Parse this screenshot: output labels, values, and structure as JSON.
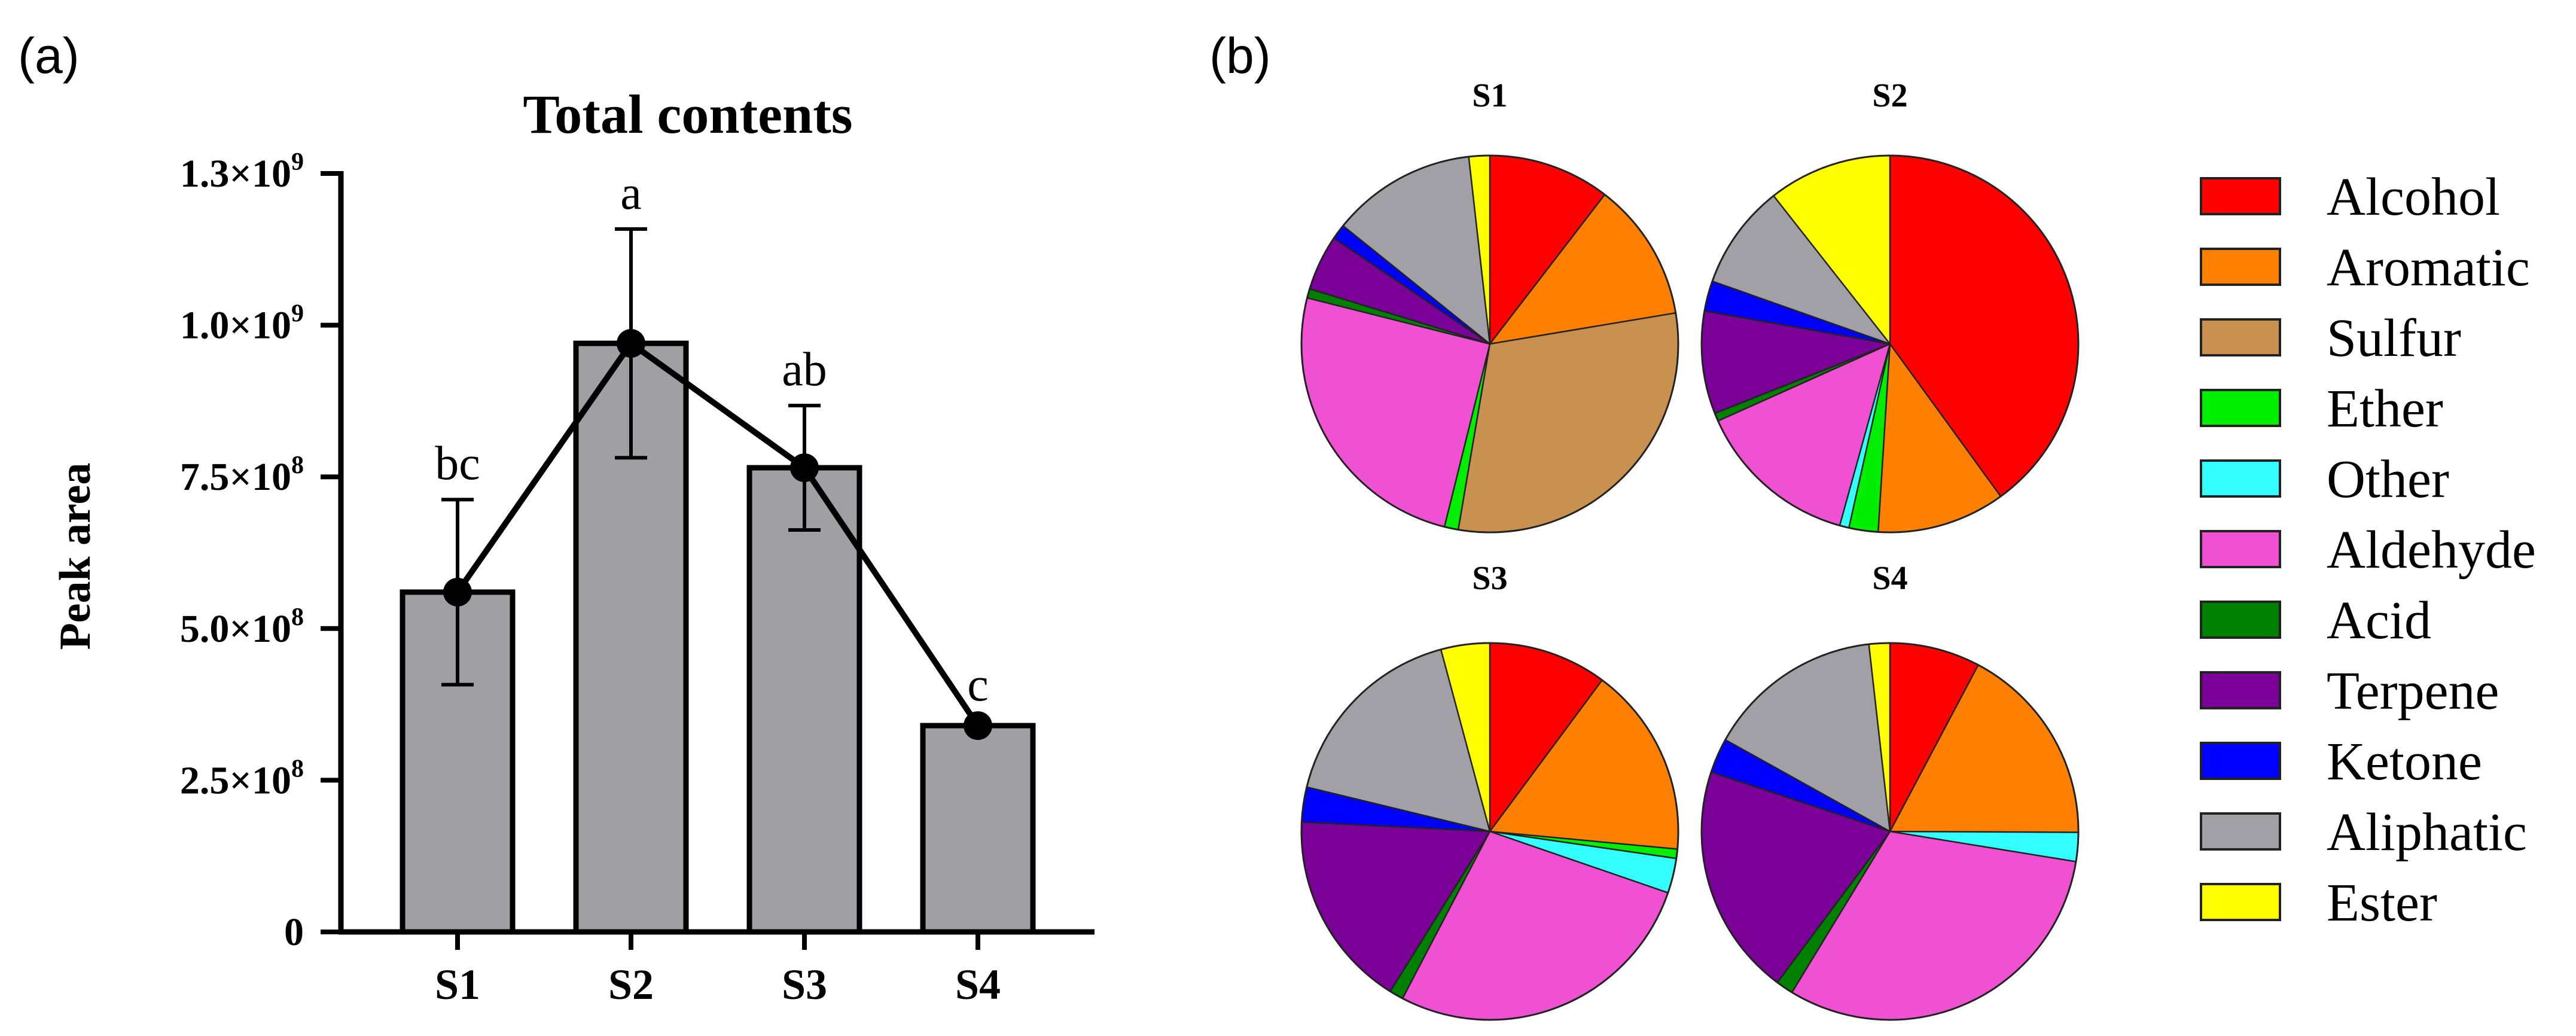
{
  "panel_a_label": "(a)",
  "panel_b_label": "(b)",
  "chart_data": [
    {
      "type": "bar",
      "title": "Total contents",
      "xlabel": "",
      "ylabel": "Peak area",
      "categories": [
        "S1",
        "S2",
        "S3",
        "S4"
      ],
      "values": [
        560000000,
        970000000,
        765000000,
        340000000
      ],
      "errors": [
        305000000,
        377000000,
        205000000,
        0
      ],
      "significance": [
        "bc",
        "a",
        "ab",
        "c"
      ],
      "overlay_line": true,
      "ylim": [
        0,
        1250000000
      ],
      "yticks": [
        {
          "value": 0,
          "mantissa": "0",
          "exp": ""
        },
        {
          "value": 250000000,
          "mantissa": "2.5×10",
          "exp": "8"
        },
        {
          "value": 500000000,
          "mantissa": "5.0×10",
          "exp": "8"
        },
        {
          "value": 750000000,
          "mantissa": "7.5×10",
          "exp": "8"
        },
        {
          "value": 1000000000,
          "mantissa": "1.0×10",
          "exp": "9"
        },
        {
          "value": 1250000000,
          "mantissa": "1.3×10",
          "exp": "9"
        }
      ],
      "bar_color": "#a09fa4",
      "line_color": "#000000"
    },
    {
      "type": "pie",
      "legend_position": "right",
      "legend": [
        {
          "name": "Alcohol",
          "color": "#ff0000"
        },
        {
          "name": "Aromatic",
          "color": "#ff8000"
        },
        {
          "name": "Sulfur",
          "color": "#c8914f"
        },
        {
          "name": "Ether",
          "color": "#00ee00"
        },
        {
          "name": "Other",
          "color": "#33ffff"
        },
        {
          "name": "Aldehyde",
          "color": "#f050d2"
        },
        {
          "name": "Acid",
          "color": "#008000"
        },
        {
          "name": "Terpene",
          "color": "#7a0097"
        },
        {
          "name": "Ketone",
          "color": "#0000ff"
        },
        {
          "name": "Aliphatic",
          "color": "#a0a0a6"
        },
        {
          "name": "Ester",
          "color": "#ffff00"
        }
      ],
      "pies": [
        {
          "title": "S1",
          "values": [
            10.5,
            12.0,
            30.5,
            1.2,
            0,
            25.2,
            0.8,
            4.8,
            1.3,
            12.5,
            1.8
          ]
        },
        {
          "title": "S2",
          "values": [
            40.0,
            11.0,
            0,
            2.5,
            0.8,
            14.0,
            0.7,
            8.8,
            2.6,
            9.0,
            10.6
          ]
        },
        {
          "title": "S3",
          "values": [
            10.2,
            16.4,
            0,
            0.8,
            3.0,
            27.5,
            1.2,
            17.0,
            3.0,
            17.1,
            4.2
          ]
        },
        {
          "title": "S4",
          "values": [
            7.8,
            17.4,
            0,
            0,
            2.5,
            31.3,
            1.5,
            20.0,
            3.0,
            15.2,
            1.8
          ]
        }
      ]
    }
  ]
}
